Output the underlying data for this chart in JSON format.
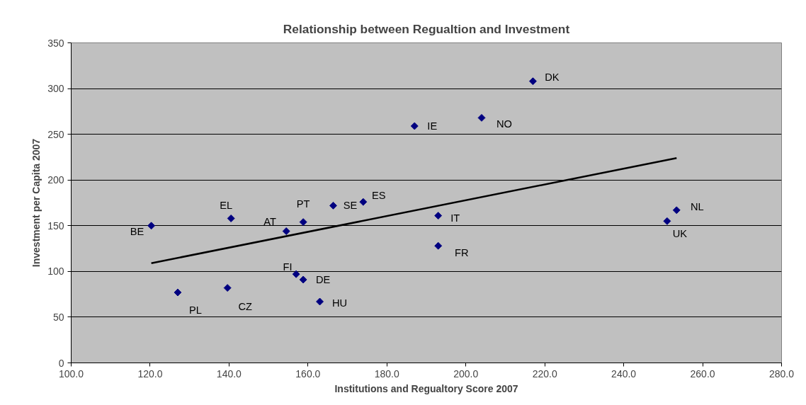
{
  "chart_data": {
    "type": "scatter",
    "title": "Relationship between Regualtion and Investment",
    "xlabel": "Institutions and Regualtory Score 2007",
    "ylabel": "Investment per Capita 2007",
    "xlim": [
      100,
      280
    ],
    "xticks": [
      {
        "value": 100,
        "label": "100.0"
      },
      {
        "value": 120,
        "label": "120.0"
      },
      {
        "value": 140,
        "label": "140.0"
      },
      {
        "value": 160,
        "label": "160.0"
      },
      {
        "value": 180,
        "label": "180.0"
      },
      {
        "value": 200,
        "label": "200.0"
      },
      {
        "value": 220,
        "label": "220.0"
      },
      {
        "value": 240,
        "label": "240.0"
      },
      {
        "value": 260,
        "label": "260.0"
      },
      {
        "value": 280,
        "label": "280.0"
      }
    ],
    "ylim": [
      0,
      350
    ],
    "yticks": [
      0,
      50,
      100,
      150,
      200,
      250,
      300,
      350
    ],
    "grid": "y",
    "series": [
      {
        "marker": "diamond",
        "color": "#000080",
        "x": [
          120.3,
          127,
          139.6,
          140.5,
          154.5,
          158.8,
          157,
          158.8,
          163,
          166.4,
          174,
          187,
          204,
          217,
          193,
          193,
          251,
          253.4
        ],
        "values": [
          150,
          77,
          82,
          158,
          144,
          154,
          97,
          91,
          67,
          172,
          176,
          259,
          268,
          308,
          161,
          128,
          155,
          167
        ]
      },
      {
        "type": "line",
        "color": "#000000",
        "x": [
          120.3,
          253.4
        ],
        "values": [
          109,
          224
        ]
      }
    ],
    "annotations": [
      {
        "text": "BE",
        "x": 120.3,
        "y": 150
      },
      {
        "text": "PL",
        "x": 127,
        "y": 77
      },
      {
        "text": "CZ",
        "x": 139.6,
        "y": 82
      },
      {
        "text": "EL",
        "x": 140.5,
        "y": 158
      },
      {
        "text": "AT",
        "x": 154.5,
        "y": 144
      },
      {
        "text": "PT",
        "x": 158.8,
        "y": 154
      },
      {
        "text": "FI",
        "x": 157,
        "y": 97
      },
      {
        "text": "DE",
        "x": 158.8,
        "y": 91
      },
      {
        "text": "HU",
        "x": 163,
        "y": 67
      },
      {
        "text": "SE",
        "x": 166.4,
        "y": 172
      },
      {
        "text": "ES",
        "x": 174,
        "y": 176
      },
      {
        "text": "IE",
        "x": 187,
        "y": 259
      },
      {
        "text": "NO",
        "x": 204,
        "y": 268
      },
      {
        "text": "DK",
        "x": 217,
        "y": 308
      },
      {
        "text": "IT",
        "x": 193,
        "y": 161
      },
      {
        "text": "FR",
        "x": 193,
        "y": 128
      },
      {
        "text": "UK",
        "x": 251,
        "y": 155
      },
      {
        "text": "NL",
        "x": 253.4,
        "y": 167
      }
    ]
  }
}
